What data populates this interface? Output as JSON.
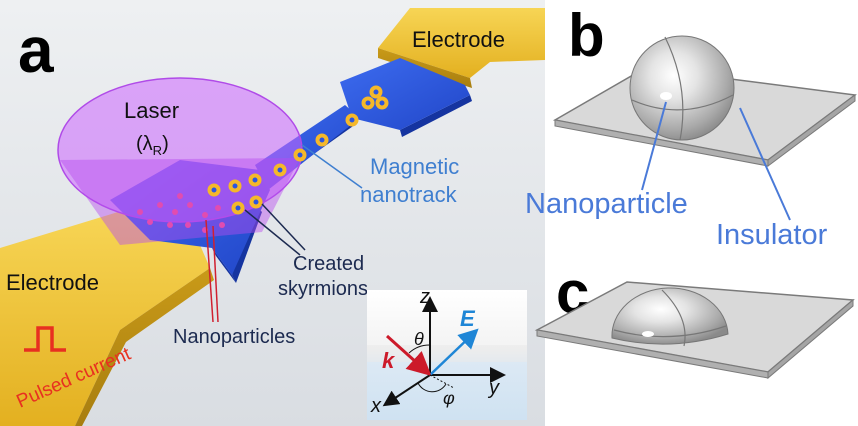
{
  "panels": {
    "a": {
      "letter": "a",
      "electrode_top": "Electrode",
      "electrode_bottom": "Electrode",
      "laser": "Laser",
      "laser_param": "(λ",
      "laser_param_sub": "R",
      "laser_param_close": ")",
      "magnetic_line1": "Magnetic",
      "magnetic_line2": "nanotrack",
      "created_line1": "Created",
      "created_line2": "skyrmions",
      "nanoparticles": "Nanoparticles",
      "pulsed_current": "Pulsed current",
      "axes": {
        "z": "z",
        "theta": "θ",
        "E": "E",
        "k": "k",
        "y": "y",
        "x": "x",
        "phi": "φ"
      }
    },
    "b": {
      "letter": "b",
      "nanoparticle": "Nanoparticle",
      "insulator": "Insulator"
    },
    "c": {
      "letter": "c"
    }
  },
  "colors": {
    "electrode": "#f0c030",
    "track": "#2b55e0",
    "laser": "#cc66ff",
    "label_blue": "#3f7fd0",
    "pointer_red": "#d02030",
    "pulsed_red": "#e83020",
    "E_blue": "#1f86d6",
    "k_red": "#cc1a2a"
  }
}
